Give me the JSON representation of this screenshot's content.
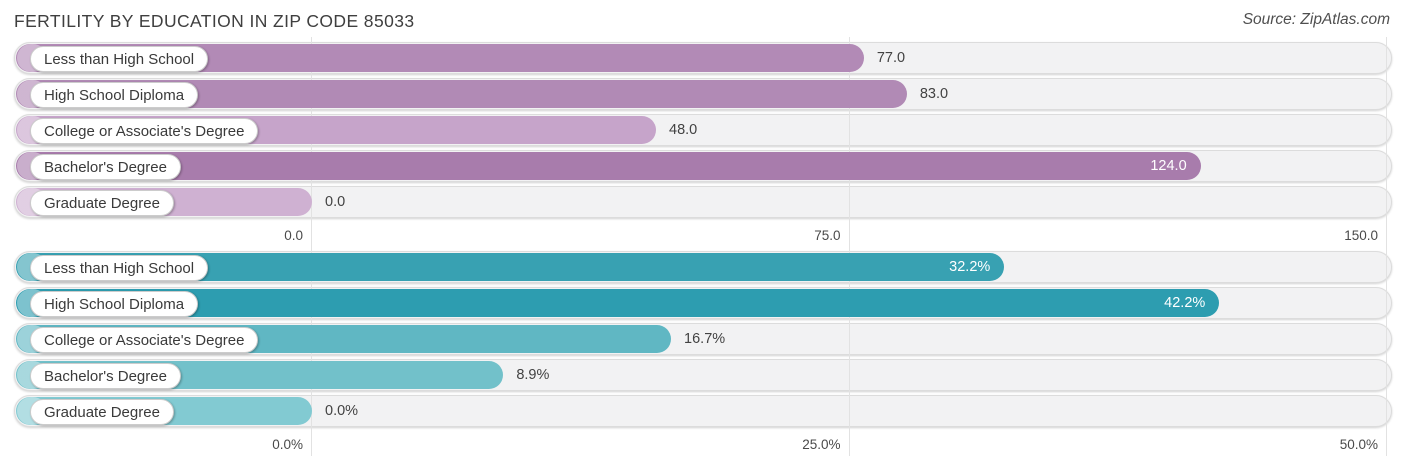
{
  "header": {
    "title": "FERTILITY BY EDUCATION IN ZIP CODE 85033",
    "source": "Source: ZipAtlas.com"
  },
  "colors": {
    "track_bg": "#f2f2f3",
    "track_border": "#dcdcdc",
    "gridline": "#e2e2e2",
    "value_text_outside": "#424242",
    "value_text_inside": "#ffffff",
    "axis_tick_text": "#4a4a4a",
    "title_text": "#3f3f3f",
    "source_text": "#4f4f4f",
    "category_label_text": "#3a3a3a",
    "purple_accent": "#a87cac",
    "teal_accent": "#2d9db0"
  },
  "chart_data": [
    {
      "type": "bar",
      "orientation": "horizontal",
      "categories": [
        "Less than High School",
        "High School Diploma",
        "College or Associate's Degree",
        "Bachelor's Degree",
        "Graduate Degree"
      ],
      "values": [
        77.0,
        83.0,
        48.0,
        124.0,
        0.0
      ],
      "value_labels": [
        "77.0",
        "83.0",
        "48.0",
        "124.0",
        "0.0"
      ],
      "value_label_inside": [
        false,
        false,
        false,
        true,
        false
      ],
      "bar_colors": [
        "#b28ab6",
        "#b18ab5",
        "#c6a4ca",
        "#a87cac",
        "#cfb1d2"
      ],
      "xlim": [
        0,
        150
      ],
      "ticks": [
        {
          "label": "0.0",
          "value": 0
        },
        {
          "label": "75.0",
          "value": 75
        },
        {
          "label": "150.0",
          "value": 150
        }
      ],
      "grid": true,
      "legend": false
    },
    {
      "type": "bar",
      "orientation": "horizontal",
      "categories": [
        "Less than High School",
        "High School Diploma",
        "College or Associate's Degree",
        "Bachelor's Degree",
        "Graduate Degree"
      ],
      "values": [
        32.2,
        42.2,
        16.7,
        8.9,
        0.0
      ],
      "value_labels": [
        "32.2%",
        "42.2%",
        "16.7%",
        "8.9%",
        "0.0%"
      ],
      "value_label_inside": [
        true,
        true,
        false,
        false,
        false
      ],
      "bar_colors": [
        "#38a1b2",
        "#2d9db0",
        "#60b7c3",
        "#72c1ca",
        "#82cad2"
      ],
      "xlim": [
        0,
        50
      ],
      "ticks": [
        {
          "label": "0.0%",
          "value": 0
        },
        {
          "label": "25.0%",
          "value": 25
        },
        {
          "label": "50.0%",
          "value": 50
        }
      ],
      "grid": true,
      "legend": false
    }
  ]
}
